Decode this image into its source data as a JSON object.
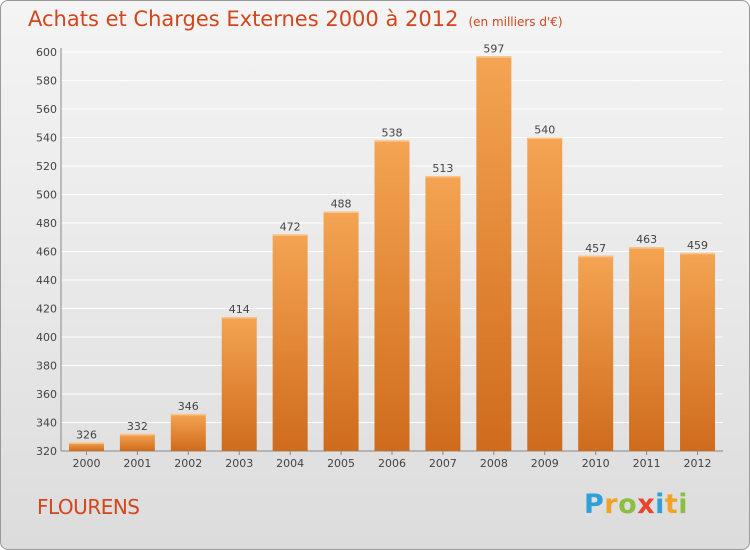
{
  "title": "Achats et Charges Externes 2000 à 2012",
  "unit": "(en milliers d'€)",
  "commune": "FLOURENS",
  "logo": {
    "letters": [
      "P",
      "r",
      "o",
      "x",
      "i",
      "t",
      "i"
    ],
    "colors": [
      "#2f9fd8",
      "#f0a326",
      "#8cbf3f",
      "#e8452c",
      "#2f9fd8",
      "#f0a326",
      "#8cbf3f"
    ]
  },
  "colors": {
    "title": "#d2461c",
    "bar_top": "#f4a452",
    "bar_bottom": "#cf6b1c",
    "grid": "#ffffff"
  },
  "chart_data": {
    "type": "bar",
    "categories": [
      "2000",
      "2001",
      "2002",
      "2003",
      "2004",
      "2005",
      "2006",
      "2007",
      "2008",
      "2009",
      "2010",
      "2011",
      "2012"
    ],
    "values": [
      326,
      332,
      346,
      414,
      472,
      488,
      538,
      513,
      597,
      540,
      457,
      463,
      459
    ],
    "ylim": [
      320,
      600
    ],
    "yticks": [
      320,
      340,
      360,
      380,
      400,
      420,
      440,
      460,
      480,
      500,
      520,
      540,
      560,
      580,
      600
    ],
    "grid": true,
    "data_labels": true
  }
}
